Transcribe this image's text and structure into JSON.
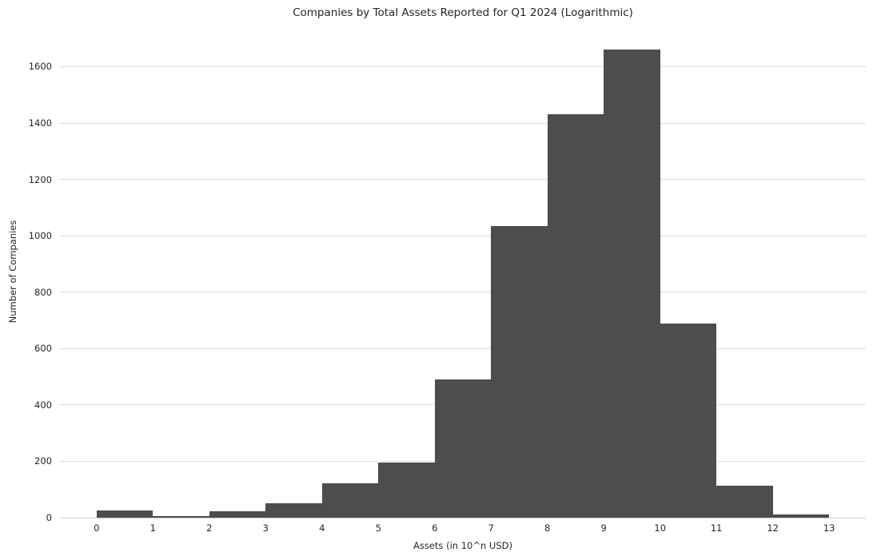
{
  "chart_data": {
    "type": "bar",
    "subtype": "histogram",
    "title": "Companies by Total Assets Reported for Q1 2024 (Logarithmic)",
    "xlabel": "Assets (in 10^n USD)",
    "ylabel": "Number of Companies",
    "bin_edges": [
      0,
      1,
      2,
      3,
      4,
      5,
      6,
      7,
      8,
      9,
      10,
      11,
      12,
      13
    ],
    "values": [
      25,
      6,
      24,
      50,
      122,
      196,
      490,
      1035,
      1432,
      1660,
      690,
      113,
      10
    ],
    "xticks": [
      "0",
      "1",
      "2",
      "3",
      "4",
      "5",
      "6",
      "7",
      "8",
      "9",
      "10",
      "11",
      "12",
      "13"
    ],
    "yticks": [
      0,
      200,
      400,
      600,
      800,
      1000,
      1200,
      1400,
      1600
    ],
    "xlim": [
      -0.65,
      13.65
    ],
    "ylim": [
      0,
      1743
    ],
    "grid": "horizontal",
    "legend": "none",
    "colors": {
      "bar": "#4d4d4d",
      "gridline": "#dcdcdc",
      "axis_line": "#cfcfcf",
      "text": "#262626",
      "background": "#ffffff"
    }
  }
}
